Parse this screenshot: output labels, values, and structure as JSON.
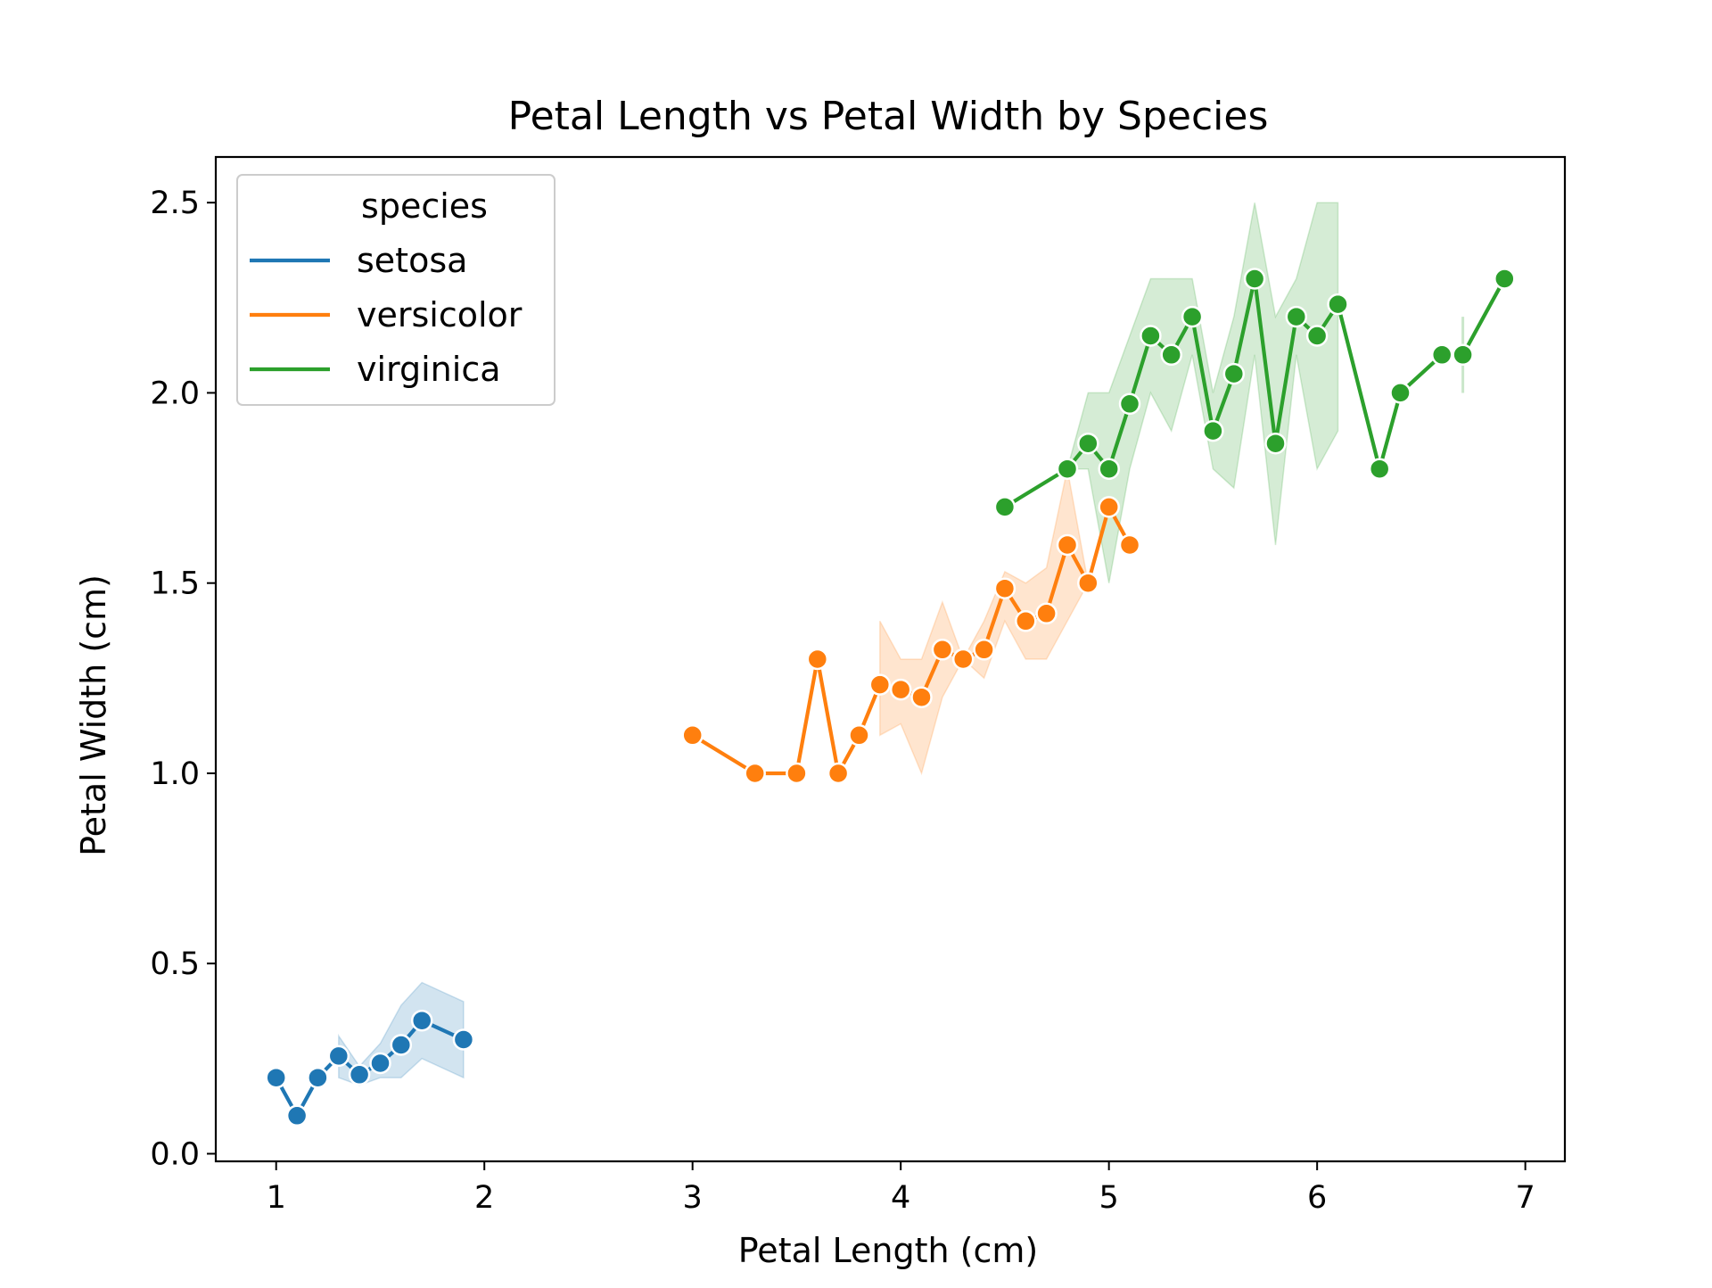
{
  "chart_data": {
    "type": "line",
    "title": "Petal Length vs Petal Width by Species",
    "xlabel": "Petal Length (cm)",
    "ylabel": "Petal Width (cm)",
    "xlim": [
      0.71,
      7.19
    ],
    "ylim": [
      -0.02,
      2.62
    ],
    "xticks": [
      1,
      2,
      3,
      4,
      5,
      6,
      7
    ],
    "xtick_labels": [
      "1",
      "2",
      "3",
      "4",
      "5",
      "6",
      "7"
    ],
    "yticks": [
      0.0,
      0.5,
      1.0,
      1.5,
      2.0,
      2.5
    ],
    "ytick_labels": [
      "0.0",
      "0.5",
      "1.0",
      "1.5",
      "2.0",
      "2.5"
    ],
    "grid": false,
    "legend": {
      "title": "species",
      "placement": "top-left",
      "entries": [
        "setosa",
        "versicolor",
        "virginica"
      ]
    },
    "series": [
      {
        "name": "setosa",
        "color": "#1f77b4",
        "points": [
          {
            "x": 1.0,
            "y": 0.2
          },
          {
            "x": 1.1,
            "y": 0.1
          },
          {
            "x": 1.2,
            "y": 0.2
          },
          {
            "x": 1.3,
            "y": 0.257
          },
          {
            "x": 1.4,
            "y": 0.208
          },
          {
            "x": 1.5,
            "y": 0.238
          },
          {
            "x": 1.6,
            "y": 0.286
          },
          {
            "x": 1.7,
            "y": 0.35
          },
          {
            "x": 1.9,
            "y": 0.3
          }
        ],
        "ci": [
          {
            "x": 1.3,
            "low": 0.2,
            "high": 0.31
          },
          {
            "x": 1.4,
            "low": 0.18,
            "high": 0.23
          },
          {
            "x": 1.5,
            "low": 0.2,
            "high": 0.29
          },
          {
            "x": 1.6,
            "low": 0.2,
            "high": 0.39
          },
          {
            "x": 1.7,
            "low": 0.25,
            "high": 0.45
          },
          {
            "x": 1.9,
            "low": 0.2,
            "high": 0.4
          }
        ]
      },
      {
        "name": "versicolor",
        "color": "#ff7f0e",
        "points": [
          {
            "x": 3.0,
            "y": 1.1
          },
          {
            "x": 3.3,
            "y": 1.0
          },
          {
            "x": 3.5,
            "y": 1.0
          },
          {
            "x": 3.6,
            "y": 1.3
          },
          {
            "x": 3.7,
            "y": 1.0
          },
          {
            "x": 3.8,
            "y": 1.1
          },
          {
            "x": 3.9,
            "y": 1.233
          },
          {
            "x": 4.0,
            "y": 1.22
          },
          {
            "x": 4.1,
            "y": 1.2
          },
          {
            "x": 4.2,
            "y": 1.325
          },
          {
            "x": 4.3,
            "y": 1.3
          },
          {
            "x": 4.4,
            "y": 1.325
          },
          {
            "x": 4.5,
            "y": 1.486
          },
          {
            "x": 4.6,
            "y": 1.4
          },
          {
            "x": 4.7,
            "y": 1.42
          },
          {
            "x": 4.8,
            "y": 1.6
          },
          {
            "x": 4.9,
            "y": 1.5
          },
          {
            "x": 5.0,
            "y": 1.7
          },
          {
            "x": 5.1,
            "y": 1.6
          }
        ],
        "ci": [
          {
            "x": 3.9,
            "low": 1.1,
            "high": 1.4
          },
          {
            "x": 4.0,
            "low": 1.13,
            "high": 1.3
          },
          {
            "x": 4.1,
            "low": 1.0,
            "high": 1.3
          },
          {
            "x": 4.2,
            "low": 1.2,
            "high": 1.45
          },
          {
            "x": 4.3,
            "low": 1.3,
            "high": 1.3
          },
          {
            "x": 4.4,
            "low": 1.25,
            "high": 1.4
          },
          {
            "x": 4.5,
            "low": 1.4,
            "high": 1.53
          },
          {
            "x": 4.6,
            "low": 1.3,
            "high": 1.5
          },
          {
            "x": 4.7,
            "low": 1.3,
            "high": 1.54
          },
          {
            "x": 4.8,
            "low": 1.4,
            "high": 1.8
          },
          {
            "x": 4.9,
            "low": 1.5,
            "high": 1.5
          },
          {
            "x": 5.0,
            "low": 1.7,
            "high": 1.7
          },
          {
            "x": 5.1,
            "low": 1.6,
            "high": 1.6
          }
        ]
      },
      {
        "name": "virginica",
        "color": "#2ca02c",
        "points": [
          {
            "x": 4.5,
            "y": 1.7
          },
          {
            "x": 4.8,
            "y": 1.8
          },
          {
            "x": 4.9,
            "y": 1.867
          },
          {
            "x": 5.0,
            "y": 1.8
          },
          {
            "x": 5.1,
            "y": 1.971
          },
          {
            "x": 5.2,
            "y": 2.15
          },
          {
            "x": 5.3,
            "y": 2.1
          },
          {
            "x": 5.4,
            "y": 2.2
          },
          {
            "x": 5.5,
            "y": 1.9
          },
          {
            "x": 5.6,
            "y": 2.05
          },
          {
            "x": 5.7,
            "y": 2.3
          },
          {
            "x": 5.8,
            "y": 1.867
          },
          {
            "x": 5.9,
            "y": 2.2
          },
          {
            "x": 6.0,
            "y": 2.15
          },
          {
            "x": 6.1,
            "y": 2.233
          },
          {
            "x": 6.3,
            "y": 1.8
          },
          {
            "x": 6.4,
            "y": 2.0
          },
          {
            "x": 6.6,
            "y": 2.1
          },
          {
            "x": 6.7,
            "y": 2.1
          },
          {
            "x": 6.9,
            "y": 2.3
          }
        ],
        "ci": [
          {
            "x": 4.8,
            "low": 1.8,
            "high": 1.8
          },
          {
            "x": 4.9,
            "low": 1.8,
            "high": 2.0
          },
          {
            "x": 5.0,
            "low": 1.5,
            "high": 2.0
          },
          {
            "x": 5.1,
            "low": 1.8,
            "high": 2.15
          },
          {
            "x": 5.2,
            "low": 2.0,
            "high": 2.3
          },
          {
            "x": 5.3,
            "low": 1.9,
            "high": 2.3
          },
          {
            "x": 5.4,
            "low": 2.1,
            "high": 2.3
          },
          {
            "x": 5.5,
            "low": 1.8,
            "high": 2.0
          },
          {
            "x": 5.6,
            "low": 1.75,
            "high": 2.2
          },
          {
            "x": 5.7,
            "low": 2.1,
            "high": 2.5
          },
          {
            "x": 5.8,
            "low": 1.6,
            "high": 2.2
          },
          {
            "x": 5.9,
            "low": 2.1,
            "high": 2.3
          },
          {
            "x": 6.0,
            "low": 1.8,
            "high": 2.5
          },
          {
            "x": 6.1,
            "low": 1.9,
            "high": 2.5
          }
        ],
        "errorbars": [
          {
            "x": 6.7,
            "low": 2.0,
            "high": 2.2
          }
        ]
      }
    ]
  }
}
